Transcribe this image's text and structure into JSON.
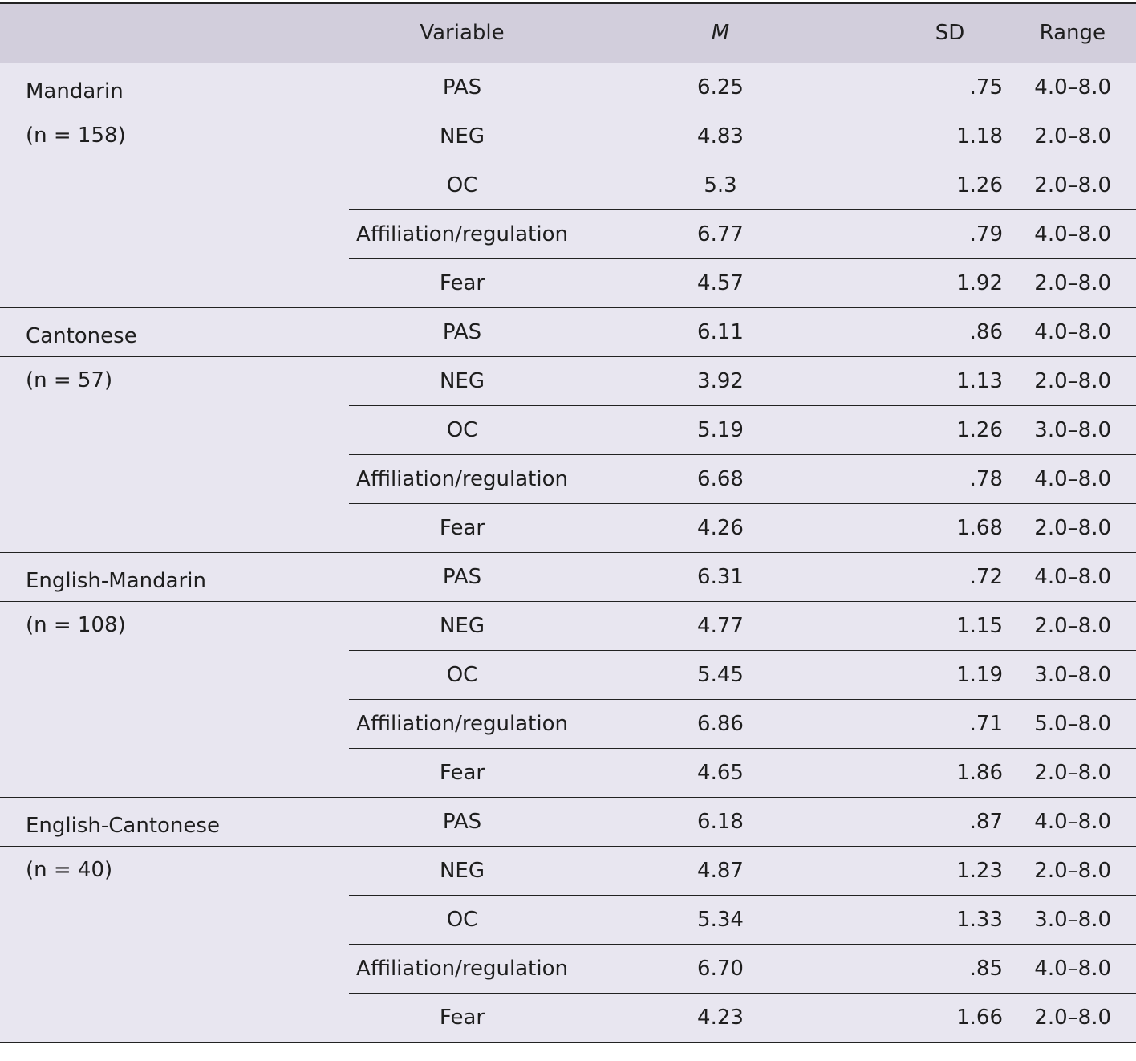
{
  "table": {
    "header": [
      "",
      "Variable",
      "M",
      "SD",
      "Range"
    ],
    "groups": [
      {
        "name": "Mandarin",
        "size": "(n = 158)",
        "rows": [
          [
            "PAS",
            "6.25",
            ".75",
            "4.0–8.0"
          ],
          [
            "NEG",
            "4.83",
            "1.18",
            "2.0–8.0"
          ],
          [
            "OC",
            "5.3",
            "1.26",
            "2.0–8.0"
          ],
          [
            "Affiliation/regulation",
            "6.77",
            ".79",
            "4.0–8.0"
          ],
          [
            "Fear",
            "4.57",
            "1.92",
            "2.0–8.0"
          ]
        ]
      },
      {
        "name": "Cantonese",
        "size": "(n = 57)",
        "rows": [
          [
            "PAS",
            "6.11",
            ".86",
            "4.0–8.0"
          ],
          [
            "NEG",
            "3.92",
            "1.13",
            "2.0–8.0"
          ],
          [
            "OC",
            "5.19",
            "1.26",
            "3.0–8.0"
          ],
          [
            "Affiliation/regulation",
            "6.68",
            ".78",
            "4.0–8.0"
          ],
          [
            "Fear",
            "4.26",
            "1.68",
            "2.0–8.0"
          ]
        ]
      },
      {
        "name": "English-Mandarin",
        "size": "(n = 108)",
        "rows": [
          [
            "PAS",
            "6.31",
            ".72",
            "4.0–8.0"
          ],
          [
            "NEG",
            "4.77",
            "1.15",
            "2.0–8.0"
          ],
          [
            "OC",
            "5.45",
            "1.19",
            "3.0–8.0"
          ],
          [
            "Affiliation/regulation",
            "6.86",
            ".71",
            "5.0–8.0"
          ],
          [
            "Fear",
            "4.65",
            "1.86",
            "2.0–8.0"
          ]
        ]
      },
      {
        "name": "English-Cantonese",
        "size": "(n = 40)",
        "rows": [
          [
            "PAS",
            "6.18",
            ".87",
            "4.0–8.0"
          ],
          [
            "NEG",
            "4.87",
            "1.23",
            "2.0–8.0"
          ],
          [
            "OC",
            "5.34",
            "1.33",
            "3.0–8.0"
          ],
          [
            "Affiliation/regulation",
            "6.70",
            ".85",
            "4.0–8.0"
          ],
          [
            "Fear",
            "4.23",
            "1.66",
            "2.0–8.0"
          ]
        ]
      }
    ]
  }
}
